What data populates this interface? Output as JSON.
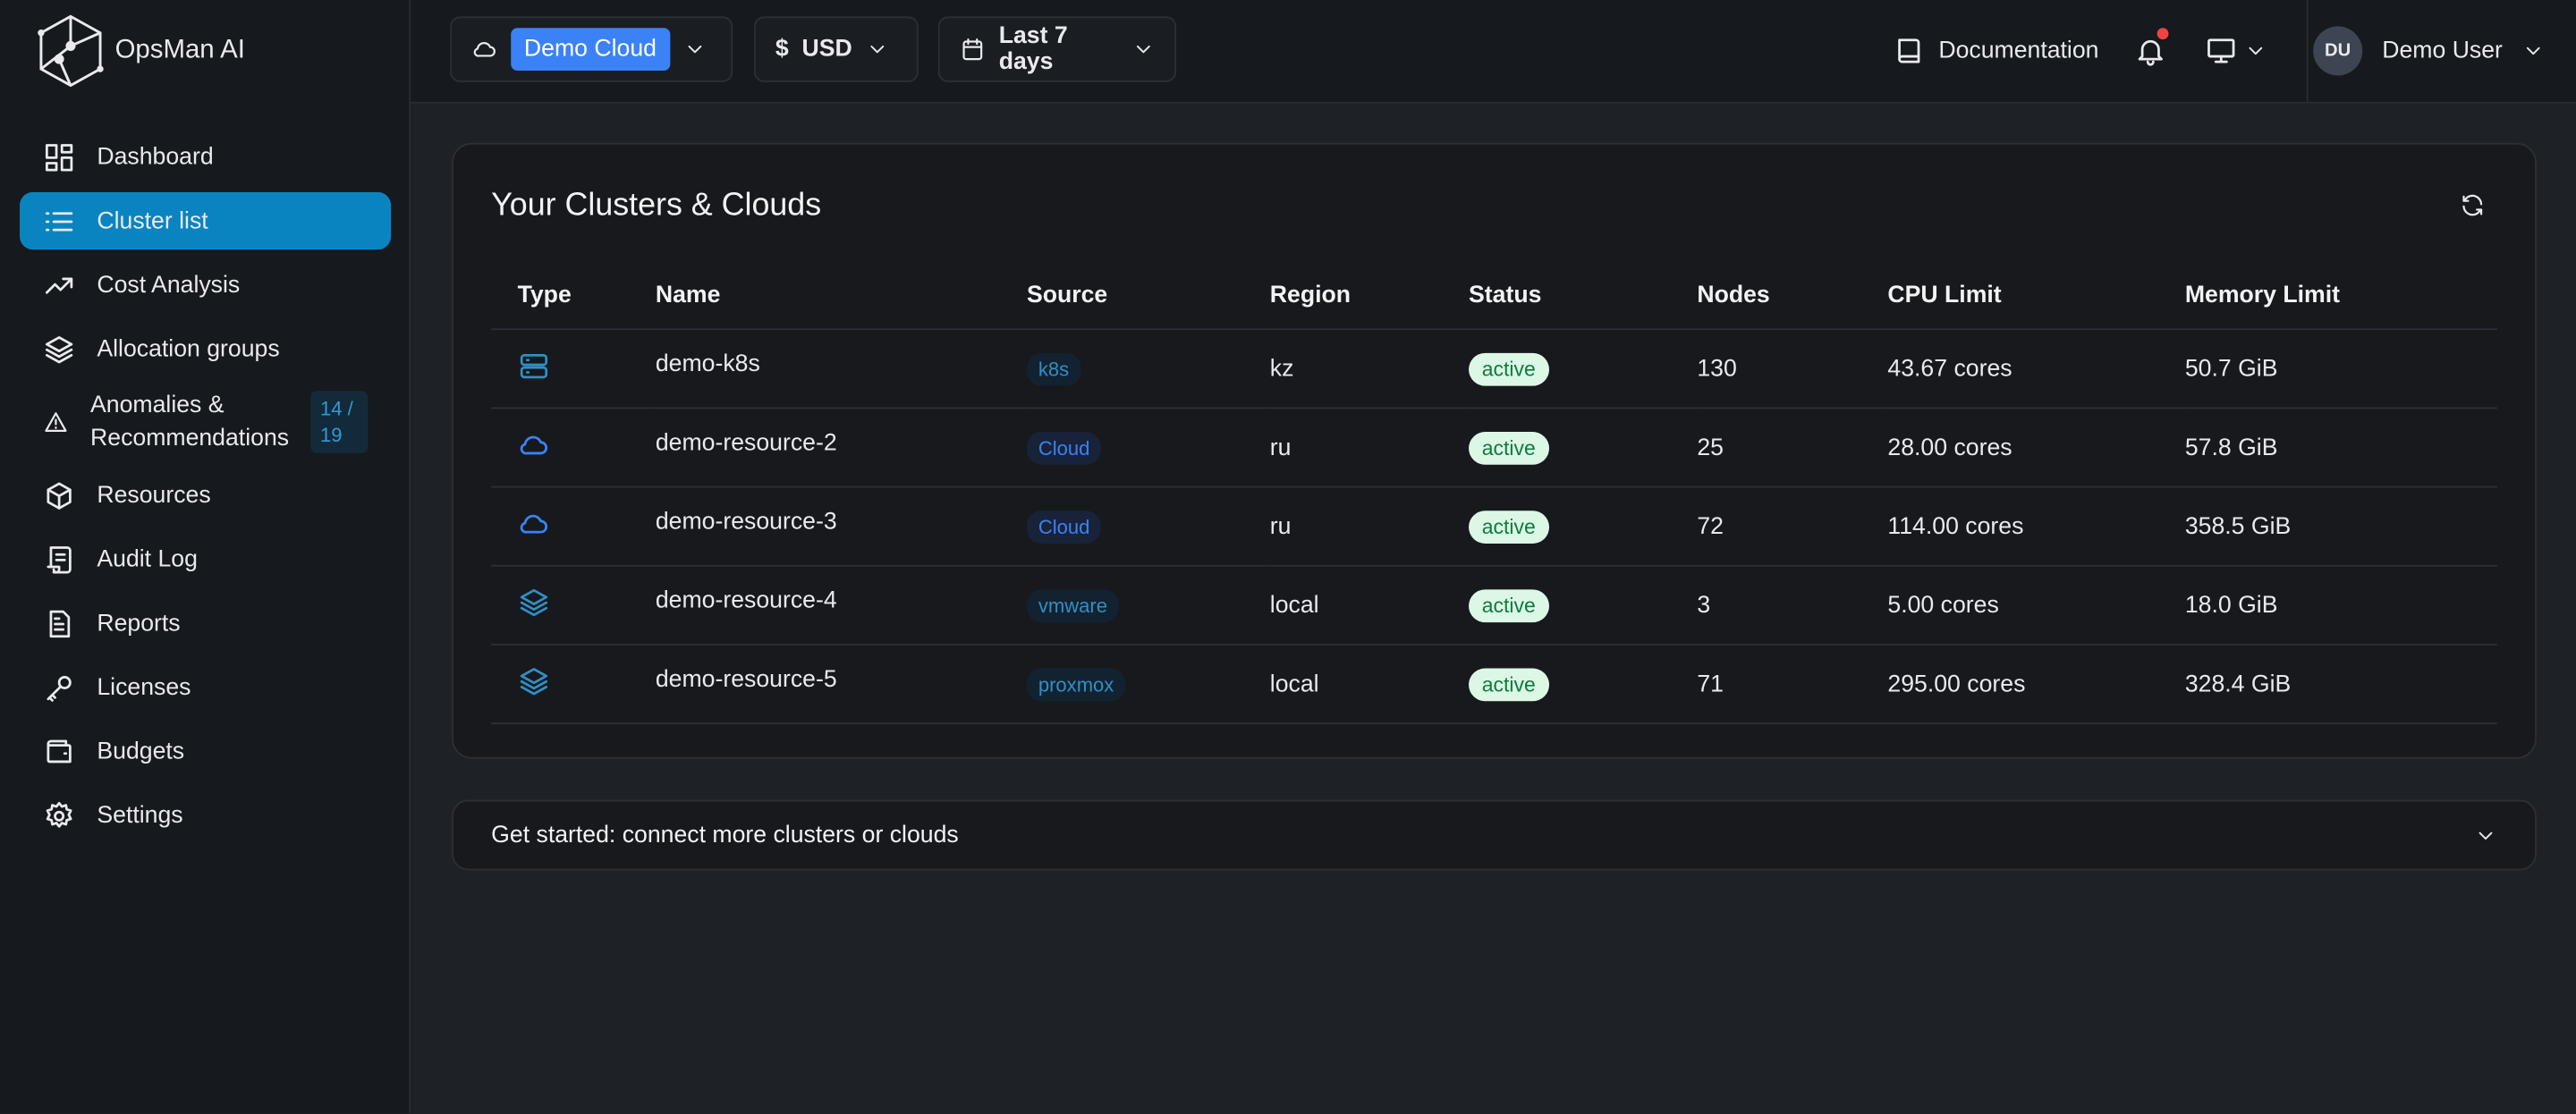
{
  "brand": "OpsMan AI",
  "nav": [
    {
      "label": "Dashboard"
    },
    {
      "label": "Cluster list"
    },
    {
      "label": "Cost Analysis"
    },
    {
      "label": "Allocation groups"
    },
    {
      "label": "Anomalies & Recommendations",
      "badge": "14 / 19"
    },
    {
      "label": "Resources"
    },
    {
      "label": "Audit Log"
    },
    {
      "label": "Reports"
    },
    {
      "label": "Licenses"
    },
    {
      "label": "Budgets"
    },
    {
      "label": "Settings"
    }
  ],
  "topbar": {
    "cloud": "Demo Cloud",
    "currency_symbol": "$",
    "currency": "USD",
    "period": "Last 7 days",
    "documentation": "Documentation",
    "user_initials": "DU",
    "user_name": "Demo User"
  },
  "card": {
    "title": "Your Clusters & Clouds",
    "columns": [
      "Type",
      "Name",
      "Source",
      "Region",
      "Status",
      "Nodes",
      "CPU Limit",
      "Memory Limit"
    ],
    "rows": [
      {
        "name": "demo-k8s",
        "source": "k8s",
        "region": "kz",
        "status": "active",
        "nodes": 130,
        "cpu": "43.67 cores",
        "memory": "50.7 GiB"
      },
      {
        "name": "demo-resource-2",
        "source": "Cloud",
        "region": "ru",
        "status": "active",
        "nodes": 25,
        "cpu": "28.00 cores",
        "memory": "57.8 GiB"
      },
      {
        "name": "demo-resource-3",
        "source": "Cloud",
        "region": "ru",
        "status": "active",
        "nodes": 72,
        "cpu": "114.00 cores",
        "memory": "358.5 GiB"
      },
      {
        "name": "demo-resource-4",
        "source": "vmware",
        "region": "local",
        "status": "active",
        "nodes": 3,
        "cpu": "5.00 cores",
        "memory": "18.0 GiB"
      },
      {
        "name": "demo-resource-5",
        "source": "proxmox",
        "region": "local",
        "status": "active",
        "nodes": 71,
        "cpu": "295.00 cores",
        "memory": "328.4 GiB"
      }
    ]
  },
  "get_started": "Get started: connect more clusters or clouds"
}
